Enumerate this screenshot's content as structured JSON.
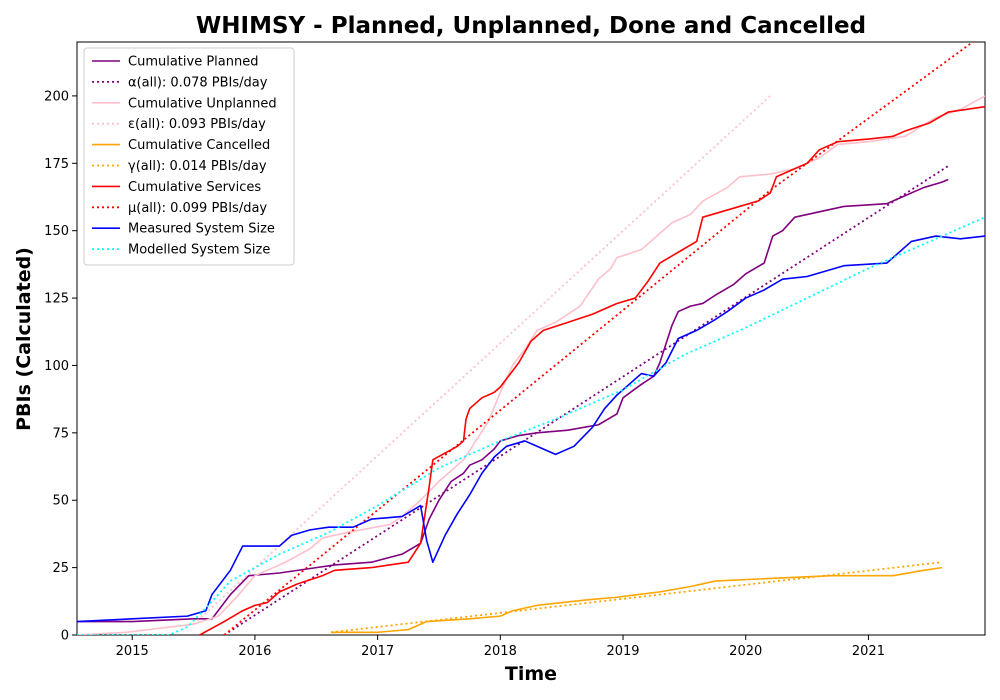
{
  "chart_data": {
    "type": "line",
    "title": "WHIMSY - Planned, Unplanned, Done  and Cancelled",
    "xlabel": "Time",
    "ylabel": "PBIs (Calculated)",
    "xlim": [
      2014.55,
      2021.95
    ],
    "ylim": [
      0,
      220
    ],
    "x_ticks": [
      2015,
      2016,
      2017,
      2018,
      2019,
      2020,
      2021
    ],
    "x_tick_labels": [
      "2015",
      "2016",
      "2017",
      "2018",
      "2019",
      "2020",
      "2021"
    ],
    "y_ticks": [
      0,
      25,
      50,
      75,
      100,
      125,
      150,
      175,
      200
    ],
    "y_tick_labels": [
      "0",
      "25",
      "50",
      "75",
      "100",
      "125",
      "150",
      "175",
      "200"
    ],
    "grid": false,
    "legend_position": "top-left",
    "series": [
      {
        "name": "Cumulative Planned",
        "color": "#800080",
        "style": "solid",
        "points": [
          [
            2014.55,
            5
          ],
          [
            2015.0,
            5
          ],
          [
            2015.5,
            6
          ],
          [
            2015.65,
            6
          ],
          [
            2015.8,
            15
          ],
          [
            2015.95,
            22
          ],
          [
            2016.2,
            23
          ],
          [
            2016.5,
            25
          ],
          [
            2016.65,
            26
          ],
          [
            2016.95,
            27
          ],
          [
            2017.2,
            30
          ],
          [
            2017.35,
            34
          ],
          [
            2017.42,
            43
          ],
          [
            2017.5,
            50
          ],
          [
            2017.6,
            57
          ],
          [
            2017.7,
            60
          ],
          [
            2017.75,
            63
          ],
          [
            2017.85,
            65
          ],
          [
            2017.95,
            69
          ],
          [
            2018.0,
            72
          ],
          [
            2018.15,
            74
          ],
          [
            2018.3,
            75
          ],
          [
            2018.55,
            76
          ],
          [
            2018.8,
            78
          ],
          [
            2018.95,
            82
          ],
          [
            2019.0,
            88
          ],
          [
            2019.15,
            93
          ],
          [
            2019.25,
            96
          ],
          [
            2019.3,
            101
          ],
          [
            2019.35,
            108
          ],
          [
            2019.4,
            115
          ],
          [
            2019.45,
            120
          ],
          [
            2019.55,
            122
          ],
          [
            2019.65,
            123
          ],
          [
            2019.75,
            126
          ],
          [
            2019.9,
            130
          ],
          [
            2020.0,
            134
          ],
          [
            2020.15,
            138
          ],
          [
            2020.22,
            148
          ],
          [
            2020.3,
            150
          ],
          [
            2020.4,
            155
          ],
          [
            2020.6,
            157
          ],
          [
            2020.8,
            159
          ],
          [
            2021.15,
            160
          ],
          [
            2021.3,
            163
          ],
          [
            2021.45,
            166
          ],
          [
            2021.6,
            168
          ],
          [
            2021.65,
            169
          ]
        ]
      },
      {
        "name": "α(all): 0.078 PBIs/day",
        "color": "#800080",
        "style": "dotted",
        "points": [
          [
            2015.75,
            0
          ],
          [
            2021.65,
            174
          ]
        ]
      },
      {
        "name": "Cumulative Unplanned",
        "color": "#ffc0cb",
        "style": "solid",
        "points": [
          [
            2014.55,
            0
          ],
          [
            2014.95,
            1
          ],
          [
            2015.5,
            4
          ],
          [
            2015.7,
            7
          ],
          [
            2015.85,
            14
          ],
          [
            2016.0,
            22
          ],
          [
            2016.25,
            27
          ],
          [
            2016.45,
            32
          ],
          [
            2016.55,
            36
          ],
          [
            2016.75,
            38
          ],
          [
            2017.1,
            41
          ],
          [
            2017.2,
            44
          ],
          [
            2017.35,
            50
          ],
          [
            2017.5,
            57
          ],
          [
            2017.7,
            65
          ],
          [
            2017.9,
            79
          ],
          [
            2018.0,
            90
          ],
          [
            2018.1,
            100
          ],
          [
            2018.2,
            106
          ],
          [
            2018.3,
            113
          ],
          [
            2018.45,
            116
          ],
          [
            2018.65,
            122
          ],
          [
            2018.8,
            132
          ],
          [
            2018.9,
            136
          ],
          [
            2018.95,
            140
          ],
          [
            2019.15,
            143
          ],
          [
            2019.3,
            149
          ],
          [
            2019.4,
            153
          ],
          [
            2019.55,
            156
          ],
          [
            2019.65,
            161
          ],
          [
            2019.85,
            166
          ],
          [
            2019.95,
            170
          ],
          [
            2020.2,
            171
          ],
          [
            2020.4,
            173
          ],
          [
            2020.6,
            177
          ],
          [
            2020.75,
            182
          ],
          [
            2021.0,
            183
          ],
          [
            2021.3,
            185
          ],
          [
            2021.55,
            192
          ],
          [
            2021.75,
            195
          ],
          [
            2021.95,
            200
          ]
        ]
      },
      {
        "name": "ε(all): 0.093 PBIs/day",
        "color": "#ffc0cb",
        "style": "dotted",
        "points": [
          [
            2015.5,
            4
          ],
          [
            2020.2,
            200
          ]
        ]
      },
      {
        "name": "Cumulative Cancelled",
        "color": "#ffa500",
        "style": "solid",
        "points": [
          [
            2016.62,
            1
          ],
          [
            2017.0,
            1
          ],
          [
            2017.25,
            2
          ],
          [
            2017.4,
            5
          ],
          [
            2017.75,
            6
          ],
          [
            2018.0,
            7
          ],
          [
            2018.1,
            9
          ],
          [
            2018.3,
            11
          ],
          [
            2018.7,
            13
          ],
          [
            2018.95,
            14
          ],
          [
            2019.3,
            16
          ],
          [
            2019.55,
            18
          ],
          [
            2019.65,
            19
          ],
          [
            2019.75,
            20
          ],
          [
            2020.2,
            21
          ],
          [
            2020.7,
            22
          ],
          [
            2021.2,
            22
          ],
          [
            2021.45,
            24
          ],
          [
            2021.6,
            25
          ]
        ]
      },
      {
        "name": "γ(all): 0.014 PBIs/day",
        "color": "#ffa500",
        "style": "dotted",
        "points": [
          [
            2016.62,
            1
          ],
          [
            2021.6,
            27
          ]
        ]
      },
      {
        "name": "Cumulative Services",
        "color": "#ff0000",
        "style": "solid",
        "points": [
          [
            2015.55,
            0
          ],
          [
            2015.75,
            5
          ],
          [
            2015.9,
            9
          ],
          [
            2016.0,
            11
          ],
          [
            2016.1,
            12
          ],
          [
            2016.2,
            16
          ],
          [
            2016.35,
            19
          ],
          [
            2016.55,
            22
          ],
          [
            2016.65,
            24
          ],
          [
            2016.95,
            25
          ],
          [
            2017.25,
            27
          ],
          [
            2017.35,
            34
          ],
          [
            2017.42,
            55
          ],
          [
            2017.45,
            65
          ],
          [
            2017.65,
            70
          ],
          [
            2017.7,
            72
          ],
          [
            2017.72,
            80
          ],
          [
            2017.75,
            84
          ],
          [
            2017.85,
            88
          ],
          [
            2017.95,
            90
          ],
          [
            2018.0,
            92
          ],
          [
            2018.15,
            101
          ],
          [
            2018.25,
            109
          ],
          [
            2018.35,
            113
          ],
          [
            2018.55,
            116
          ],
          [
            2018.75,
            119
          ],
          [
            2018.95,
            123
          ],
          [
            2019.1,
            125
          ],
          [
            2019.2,
            131
          ],
          [
            2019.3,
            138
          ],
          [
            2019.45,
            142
          ],
          [
            2019.6,
            146
          ],
          [
            2019.65,
            155
          ],
          [
            2019.8,
            157
          ],
          [
            2019.95,
            159
          ],
          [
            2020.1,
            161
          ],
          [
            2020.2,
            164
          ],
          [
            2020.25,
            170
          ],
          [
            2020.35,
            172
          ],
          [
            2020.5,
            175
          ],
          [
            2020.6,
            180
          ],
          [
            2020.75,
            183
          ],
          [
            2021.0,
            184
          ],
          [
            2021.2,
            185
          ],
          [
            2021.3,
            187
          ],
          [
            2021.5,
            190
          ],
          [
            2021.65,
            194
          ],
          [
            2021.95,
            196
          ]
        ]
      },
      {
        "name": "μ(all): 0.099 PBIs/day",
        "color": "#ff0000",
        "style": "dotted",
        "points": [
          [
            2015.75,
            0
          ],
          [
            2020.2,
            165
          ],
          [
            2021.85,
            220
          ]
        ]
      },
      {
        "name": "Measured System Size",
        "color": "#0000ff",
        "style": "solid",
        "points": [
          [
            2014.55,
            5
          ],
          [
            2015.0,
            6
          ],
          [
            2015.45,
            7
          ],
          [
            2015.6,
            9
          ],
          [
            2015.65,
            15
          ],
          [
            2015.8,
            24
          ],
          [
            2015.9,
            33
          ],
          [
            2016.05,
            33
          ],
          [
            2016.2,
            33
          ],
          [
            2016.3,
            37
          ],
          [
            2016.45,
            39
          ],
          [
            2016.6,
            40
          ],
          [
            2016.8,
            40
          ],
          [
            2016.95,
            43
          ],
          [
            2017.2,
            44
          ],
          [
            2017.35,
            48
          ],
          [
            2017.4,
            35
          ],
          [
            2017.45,
            27
          ],
          [
            2017.55,
            37
          ],
          [
            2017.65,
            45
          ],
          [
            2017.75,
            52
          ],
          [
            2017.85,
            60
          ],
          [
            2017.95,
            66
          ],
          [
            2018.05,
            70
          ],
          [
            2018.2,
            72
          ],
          [
            2018.35,
            69
          ],
          [
            2018.45,
            67
          ],
          [
            2018.6,
            70
          ],
          [
            2018.75,
            77
          ],
          [
            2018.85,
            84
          ],
          [
            2018.95,
            89
          ],
          [
            2019.05,
            93
          ],
          [
            2019.15,
            97
          ],
          [
            2019.25,
            96
          ],
          [
            2019.35,
            101
          ],
          [
            2019.45,
            110
          ],
          [
            2019.6,
            113
          ],
          [
            2019.75,
            117
          ],
          [
            2019.85,
            120
          ],
          [
            2020.0,
            125
          ],
          [
            2020.15,
            128
          ],
          [
            2020.3,
            132
          ],
          [
            2020.5,
            133
          ],
          [
            2020.8,
            137
          ],
          [
            2021.15,
            138
          ],
          [
            2021.35,
            146
          ],
          [
            2021.55,
            148
          ],
          [
            2021.75,
            147
          ],
          [
            2021.95,
            148
          ]
        ]
      },
      {
        "name": "Modelled System Size",
        "color": "#00ffff",
        "style": "dotted",
        "points": [
          [
            2014.55,
            0
          ],
          [
            2015.3,
            0
          ],
          [
            2015.45,
            3
          ],
          [
            2015.6,
            10
          ],
          [
            2015.8,
            20
          ],
          [
            2016.2,
            30
          ],
          [
            2016.6,
            38
          ],
          [
            2017.0,
            48
          ],
          [
            2017.5,
            62
          ],
          [
            2018.0,
            72
          ],
          [
            2018.5,
            81
          ],
          [
            2019.0,
            91
          ],
          [
            2019.5,
            104
          ],
          [
            2020.0,
            114
          ],
          [
            2020.5,
            125
          ],
          [
            2021.0,
            136
          ],
          [
            2021.5,
            146
          ],
          [
            2021.95,
            155
          ]
        ]
      }
    ]
  }
}
